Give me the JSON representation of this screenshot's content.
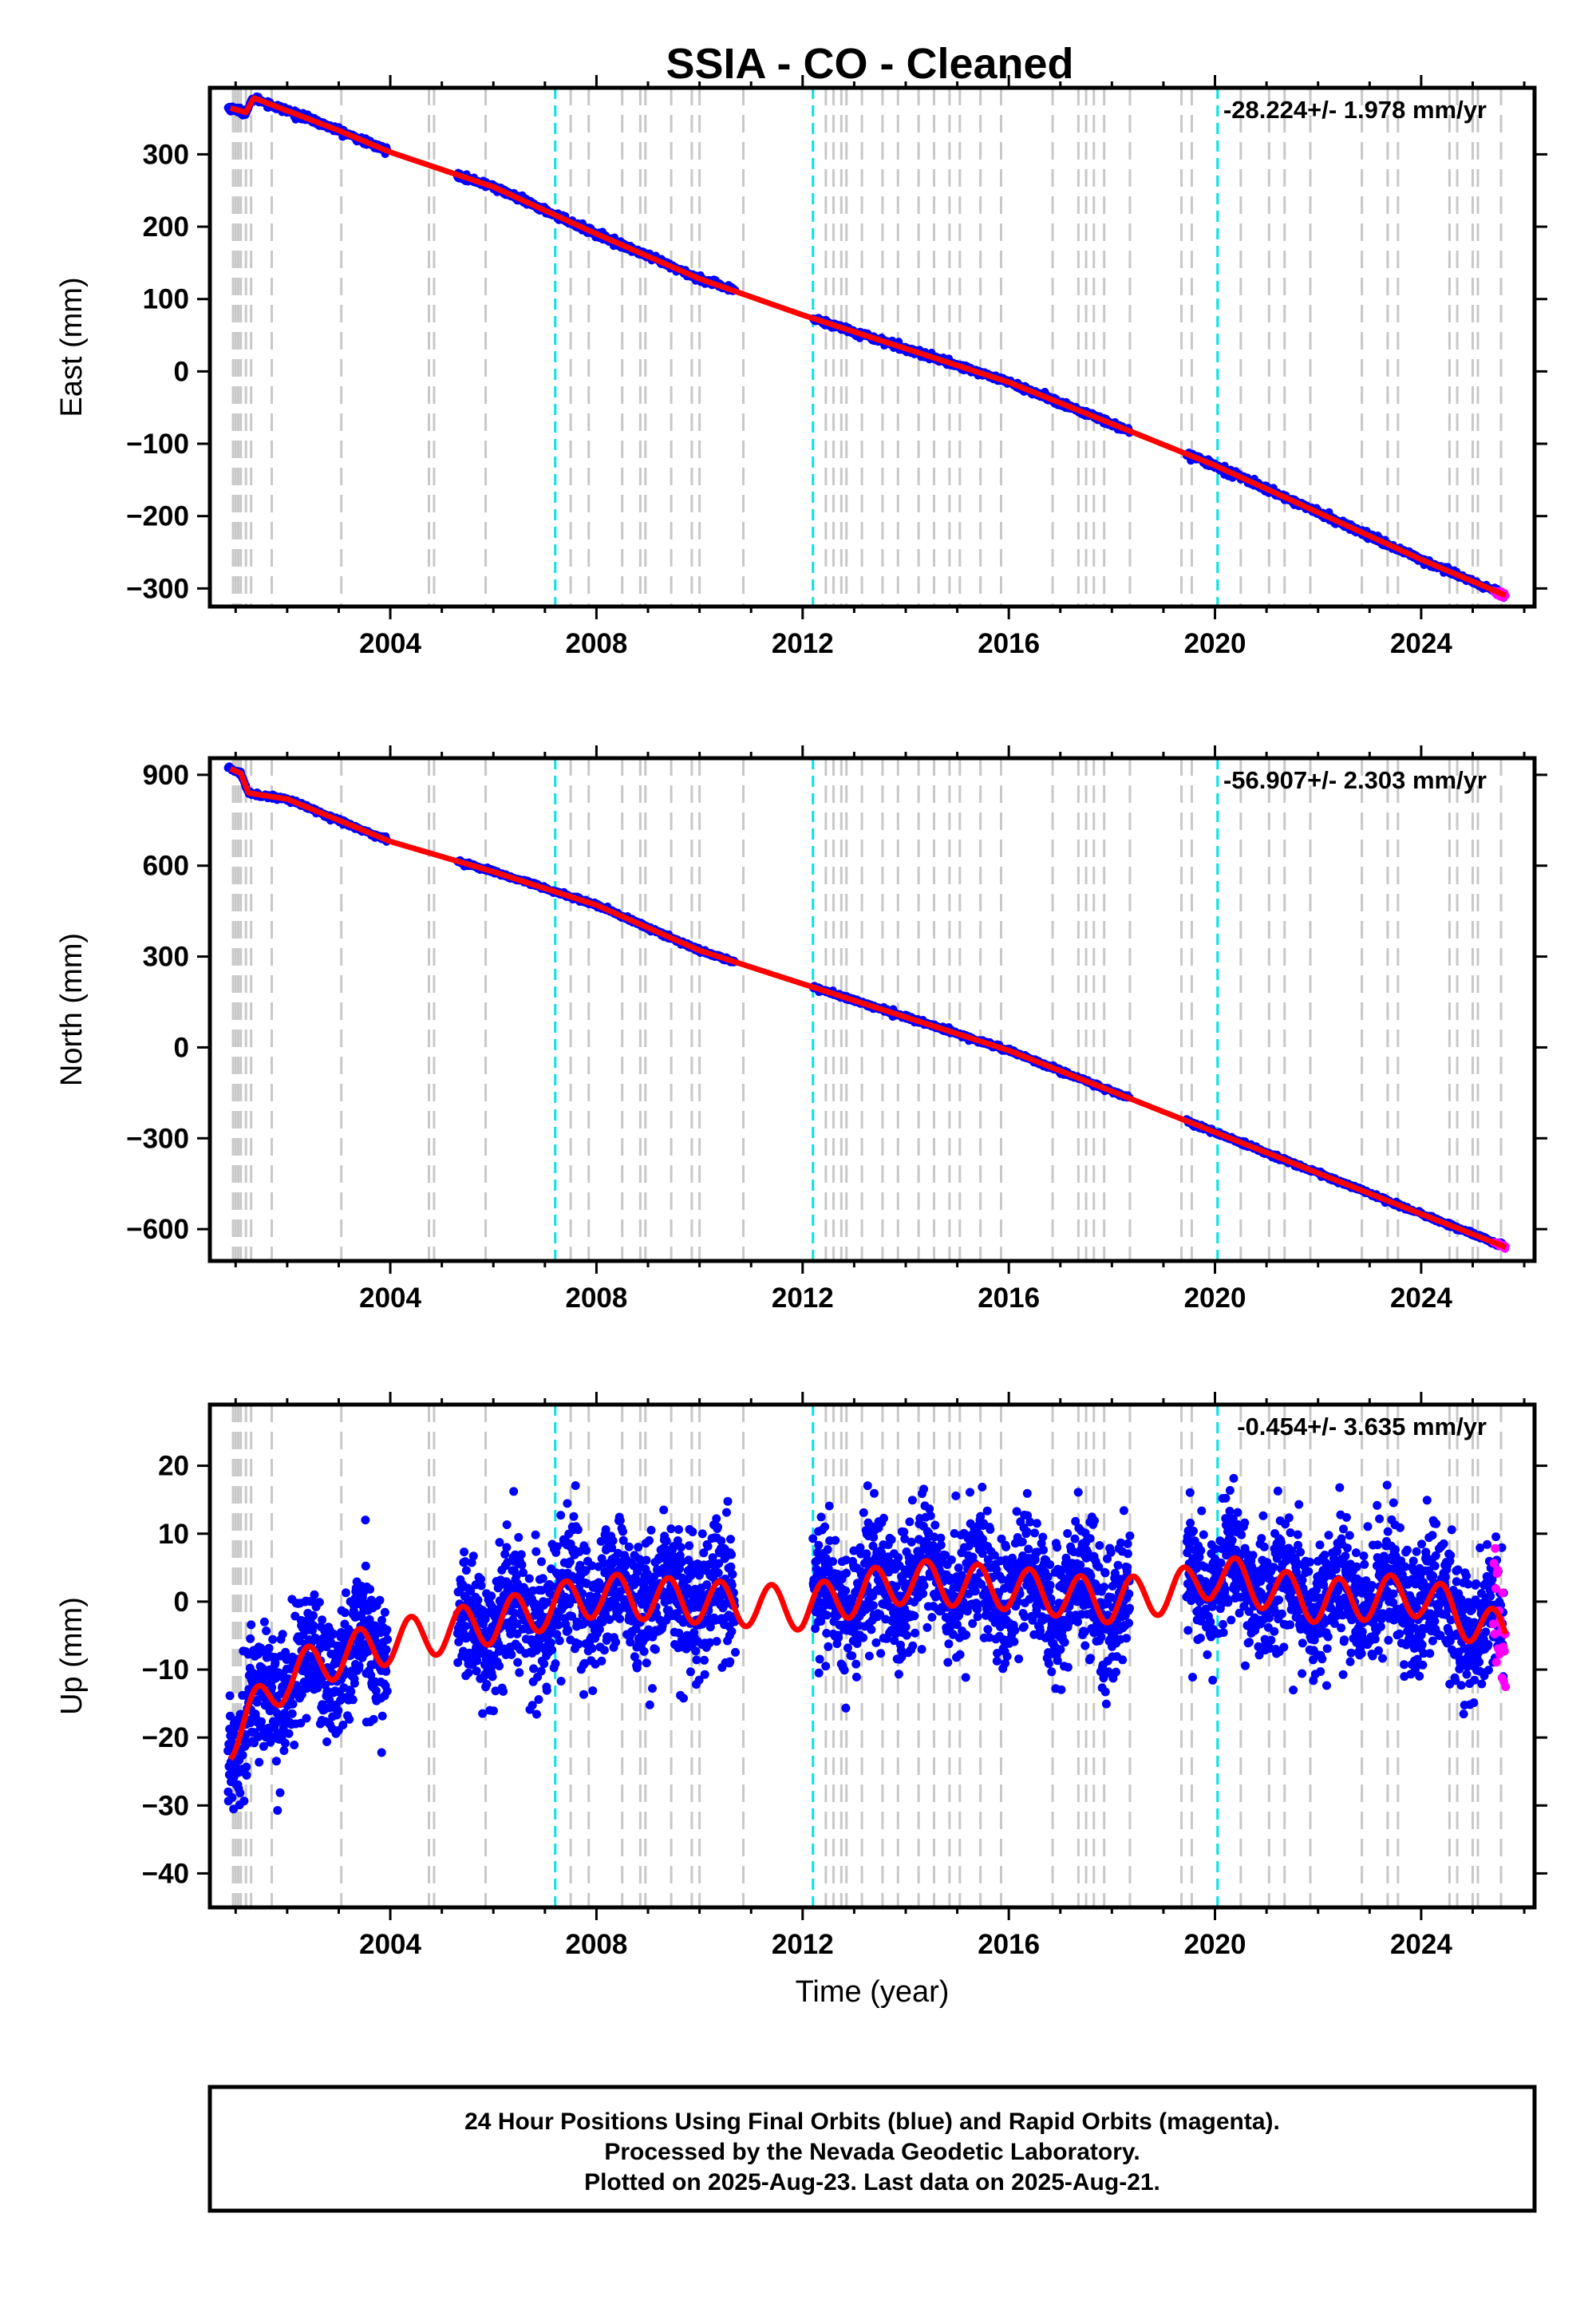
{
  "title": "SSIA  - CO - Cleaned",
  "footer": {
    "lines": [
      "24 Hour Positions Using Final Orbits (blue) and Rapid Orbits (magenta).",
      "Processed by the Nevada Geodetic Laboratory.",
      "Plotted on 2025-Aug-23. Last data on 2025-Aug-21."
    ]
  },
  "colors": {
    "final_orbits": "#0000ff",
    "rapid_orbits": "#ff00ff",
    "model": "#ff0000",
    "equipment_change": "#c8c8c8",
    "earthquake": "#00e5e5"
  },
  "chart_data": [
    {
      "type": "scatter",
      "component": "east",
      "ylabel": "East (mm)",
      "xlabel": "",
      "rate_text": "-28.224+/- 1.978 mm/yr",
      "xlim": [
        2000.5,
        2026.2
      ],
      "ylim": [
        -325,
        392
      ],
      "xticks": [
        2004,
        2008,
        2012,
        2016,
        2020,
        2024
      ],
      "yticks": [
        300,
        200,
        100,
        0,
        -100,
        -200,
        -300
      ],
      "ytick_labels": [
        "300",
        "200",
        "100",
        "0",
        "−100",
        "−200",
        "−300"
      ],
      "anchors": [
        [
          2000.9,
          364
        ],
        [
          2001.2,
          358
        ],
        [
          2001.35,
          378
        ],
        [
          2003.0,
          333
        ],
        [
          2004.0,
          303
        ],
        [
          2006.0,
          255
        ],
        [
          2008.0,
          190
        ],
        [
          2010.0,
          128
        ],
        [
          2012.0,
          78
        ],
        [
          2016.0,
          -15
        ],
        [
          2020.0,
          -130
        ],
        [
          2024.0,
          -260
        ],
        [
          2025.65,
          -310
        ]
      ],
      "data_spans": [
        [
          2000.85,
          2003.95
        ],
        [
          2005.3,
          2010.7
        ],
        [
          2012.2,
          2018.35
        ],
        [
          2019.45,
          2025.6
        ]
      ],
      "scatter_sd": 2.2,
      "rapid_span": [
        2025.4,
        2025.65
      ]
    },
    {
      "type": "scatter",
      "component": "north",
      "ylabel": "North (mm)",
      "xlabel": "",
      "rate_text": "-56.907+/- 2.303 mm/yr",
      "xlim": [
        2000.5,
        2026.2
      ],
      "ylim": [
        -705,
        955
      ],
      "xticks": [
        2004,
        2008,
        2012,
        2016,
        2020,
        2024
      ],
      "yticks": [
        900,
        600,
        300,
        0,
        -300,
        -600
      ],
      "ytick_labels": [
        "900",
        "600",
        "300",
        "0",
        "−300",
        "−600"
      ],
      "anchors": [
        [
          2000.9,
          920
        ],
        [
          2001.1,
          905
        ],
        [
          2001.25,
          840
        ],
        [
          2002.0,
          820
        ],
        [
          2004.0,
          680
        ],
        [
          2006.0,
          580
        ],
        [
          2008.0,
          470
        ],
        [
          2010.0,
          320
        ],
        [
          2012.0,
          210
        ],
        [
          2016.0,
          -10
        ],
        [
          2020.0,
          -280
        ],
        [
          2024.0,
          -550
        ],
        [
          2025.65,
          -660
        ]
      ],
      "data_spans": [
        [
          2000.85,
          2003.95
        ],
        [
          2005.3,
          2010.7
        ],
        [
          2012.2,
          2018.35
        ],
        [
          2019.45,
          2025.6
        ]
      ],
      "scatter_sd": 3.5,
      "rapid_span": [
        2025.4,
        2025.65
      ]
    },
    {
      "type": "scatter",
      "component": "up",
      "ylabel": "Up (mm)",
      "xlabel": "Time (year)",
      "rate_text": "-0.454+/- 3.635 mm/yr",
      "xlim": [
        2000.5,
        2026.2
      ],
      "ylim": [
        -45,
        29
      ],
      "xticks": [
        2004,
        2008,
        2012,
        2016,
        2020,
        2024
      ],
      "yticks": [
        20,
        10,
        0,
        -10,
        -20,
        -30,
        -40
      ],
      "ytick_labels": [
        "20",
        "10",
        "0",
        "−10",
        "−20",
        "−30",
        "−40"
      ],
      "anchors": [
        [
          2000.9,
          -20
        ],
        [
          2001.5,
          -15
        ],
        [
          2002.0,
          -11
        ],
        [
          2003.0,
          -8
        ],
        [
          2004.0,
          -6
        ],
        [
          2006.0,
          -3
        ],
        [
          2008.0,
          1
        ],
        [
          2010.0,
          0
        ],
        [
          2012.0,
          -1
        ],
        [
          2014.0,
          3
        ],
        [
          2016.0,
          2
        ],
        [
          2018.0,
          0
        ],
        [
          2019.5,
          2
        ],
        [
          2020.0,
          4
        ],
        [
          2022.0,
          0
        ],
        [
          2024.0,
          1
        ],
        [
          2025.0,
          -3
        ],
        [
          2025.65,
          -5
        ]
      ],
      "seasonal_amplitude": 3.2,
      "data_spans": [
        [
          2000.85,
          2003.95
        ],
        [
          2005.3,
          2010.7
        ],
        [
          2012.2,
          2018.35
        ],
        [
          2019.45,
          2025.6
        ]
      ],
      "scatter_sd": 4.8,
      "rapid_span": [
        2025.4,
        2025.65
      ]
    }
  ],
  "vertical_markers": {
    "equipment_changes": [
      2000.95,
      2001.0,
      2001.05,
      2001.1,
      2001.2,
      2001.3,
      2001.7,
      2003.05,
      2004.75,
      2004.85,
      2005.85,
      2007.5,
      2007.85,
      2008.5,
      2008.85,
      2008.95,
      2009.45,
      2009.85,
      2010.0,
      2010.85,
      2012.45,
      2012.6,
      2012.75,
      2012.85,
      2013.15,
      2013.55,
      2013.85,
      2014.25,
      2014.55,
      2014.85,
      2015.05,
      2015.45,
      2015.85,
      2016.85,
      2017.35,
      2017.5,
      2017.65,
      2017.85,
      2018.35,
      2019.35,
      2019.55,
      2020.5,
      2021.05,
      2021.35,
      2021.85,
      2022.85,
      2023.35,
      2023.55,
      2024.55,
      2024.7,
      2025.0,
      2025.1,
      2025.55
    ],
    "earthquakes": [
      2007.2,
      2012.2,
      2020.05
    ]
  }
}
